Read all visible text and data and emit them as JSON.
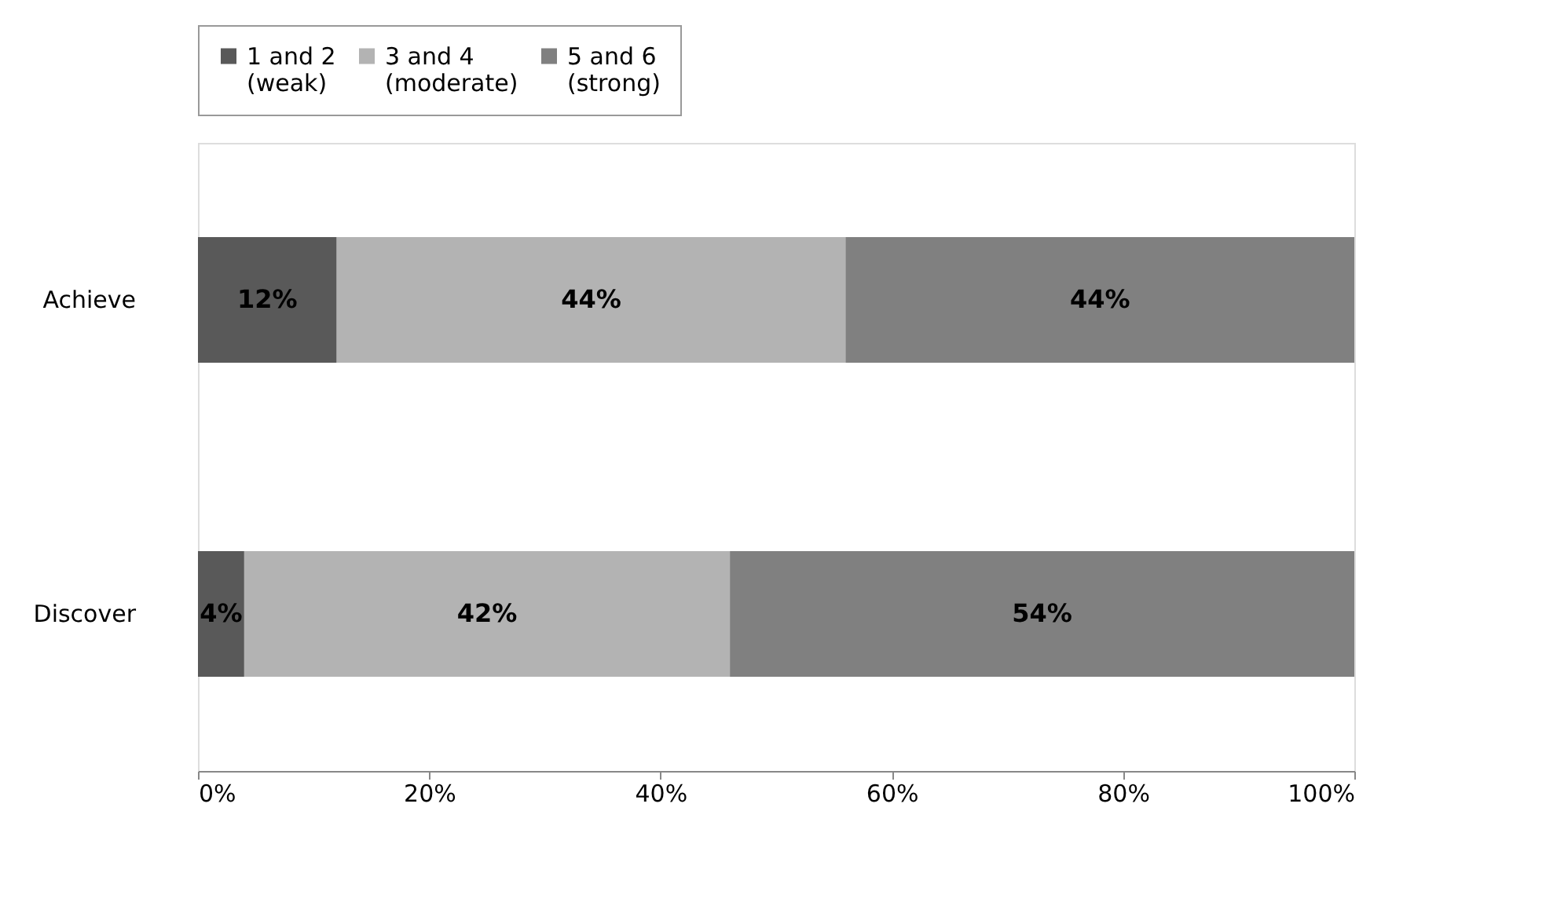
{
  "chart_data": {
    "type": "bar",
    "orientation": "horizontal",
    "stacked": true,
    "categories": [
      "Achieve",
      "Discover"
    ],
    "series": [
      {
        "name": "1 and 2 (weak)",
        "color": "#595959",
        "values": [
          12,
          4
        ],
        "value_labels": [
          "12%",
          "4%"
        ]
      },
      {
        "name": "3 and 4 (moderate)",
        "color": "#b3b3b3",
        "values": [
          44,
          42
        ],
        "value_labels": [
          "44%",
          "42%"
        ]
      },
      {
        "name": "5 and 6 (strong)",
        "color": "#808080",
        "values": [
          44,
          54
        ],
        "value_labels": [
          "44%",
          "54%"
        ]
      }
    ],
    "xlim": [
      0,
      100
    ],
    "xticks": [
      {
        "value": 0,
        "label": "0%"
      },
      {
        "value": 20,
        "label": "20%"
      },
      {
        "value": 40,
        "label": "40%"
      },
      {
        "value": 60,
        "label": "60%"
      },
      {
        "value": 80,
        "label": "80%"
      },
      {
        "value": 100,
        "label": "100%"
      }
    ],
    "grid": false,
    "legend": "top"
  }
}
